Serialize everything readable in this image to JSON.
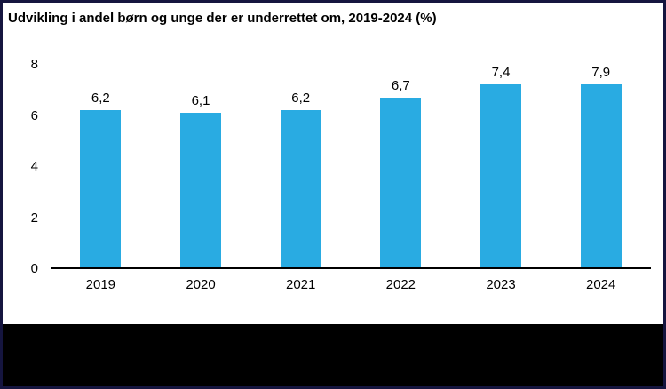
{
  "title": "Udvikling i andel børn og unge der er underrettet om, 2019-2024 (%)",
  "colors": {
    "bar": "#29abe2",
    "frame_border": "#15153f",
    "footer": "#000000",
    "axis": "#000000",
    "text": "#000000"
  },
  "chart_data": {
    "type": "bar",
    "title": "Udvikling i andel børn og unge der er underrettet om, 2019-2024 (%)",
    "categories": [
      "2019",
      "2020",
      "2021",
      "2022",
      "2023",
      "2024"
    ],
    "values": [
      6.2,
      6.1,
      6.2,
      6.7,
      7.4,
      7.9
    ],
    "value_labels": [
      "6,2",
      "6,1",
      "6,2",
      "6,7",
      "7,4",
      "7,9"
    ],
    "xlabel": "",
    "ylabel": "",
    "ylim": [
      0,
      8
    ],
    "yticks": [
      0,
      2,
      4,
      6,
      8
    ],
    "grid": false,
    "legend": "none",
    "bar_color": "#29abe2"
  }
}
